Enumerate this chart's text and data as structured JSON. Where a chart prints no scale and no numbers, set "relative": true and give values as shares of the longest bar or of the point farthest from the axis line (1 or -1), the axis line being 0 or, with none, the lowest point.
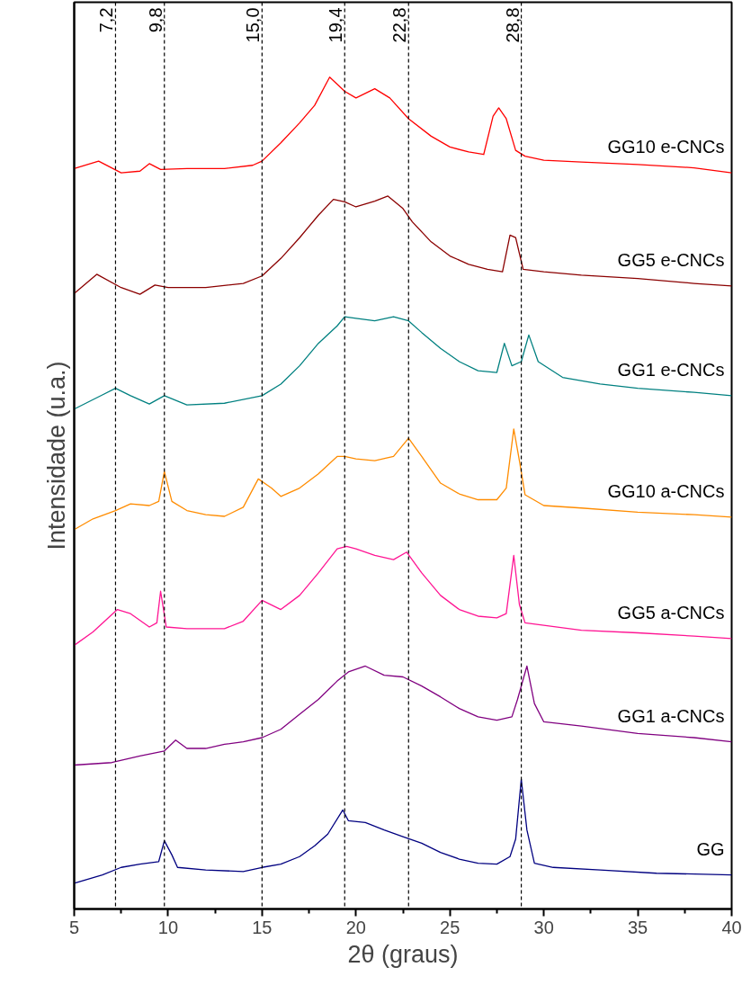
{
  "chart_data": {
    "type": "line",
    "relative": true,
    "xlabel": "2θ (graus)",
    "ylabel": "Intensidade (u.a.)",
    "xlim": [
      5,
      40
    ],
    "xticks": [
      5,
      10,
      15,
      20,
      25,
      30,
      35,
      40
    ],
    "grid": false,
    "line_style": "solid",
    "marker": "none",
    "ref_lines": [
      {
        "axis": "x",
        "value": 7.2,
        "label": "7,2",
        "color": "#000000",
        "line_style": "dashed"
      },
      {
        "axis": "x",
        "value": 9.8,
        "label": "9,8",
        "color": "#000000",
        "line_style": "dashed"
      },
      {
        "axis": "x",
        "value": 15.0,
        "label": "15,0",
        "color": "#000000",
        "line_style": "dashed"
      },
      {
        "axis": "x",
        "value": 19.4,
        "label": "19,4",
        "color": "#000000",
        "line_style": "dashed"
      },
      {
        "axis": "x",
        "value": 22.8,
        "label": "22,8",
        "color": "#000000",
        "line_style": "dashed"
      },
      {
        "axis": "x",
        "value": 28.8,
        "label": "28,8",
        "color": "#000000",
        "line_style": "dashed"
      }
    ],
    "series": [
      {
        "name": "GG10 e-CNCs",
        "color": "#ff0000",
        "x": [
          5,
          6.3,
          7.5,
          8.5,
          9,
          9.6,
          11,
          13,
          14.5,
          15,
          16,
          17,
          17.8,
          18.6,
          19.4,
          20,
          21,
          21.8,
          22.8,
          24,
          25,
          26,
          26.8,
          27.3,
          27.6,
          28,
          28.5,
          29,
          30,
          32,
          35,
          38,
          40
        ],
        "values": [
          0.89,
          0.899,
          0.885,
          0.887,
          0.896,
          0.889,
          0.89,
          0.89,
          0.894,
          0.899,
          0.921,
          0.945,
          0.966,
          1.0,
          0.983,
          0.975,
          0.986,
          0.975,
          0.95,
          0.929,
          0.916,
          0.91,
          0.907,
          0.953,
          0.963,
          0.95,
          0.912,
          0.905,
          0.9,
          0.898,
          0.895,
          0.891,
          0.885
        ]
      },
      {
        "name": "GG5 e-CNCs",
        "color": "#8b0000",
        "x": [
          5,
          6.2,
          7.5,
          8.5,
          9.3,
          10,
          12,
          14,
          15,
          16,
          17,
          18,
          18.8,
          19.4,
          20,
          21,
          21.7,
          22.5,
          23,
          24,
          25,
          26,
          27,
          27.8,
          28.2,
          28.5,
          28.9,
          30,
          32,
          35,
          38,
          40
        ],
        "values": [
          0.74,
          0.763,
          0.747,
          0.739,
          0.75,
          0.747,
          0.747,
          0.752,
          0.761,
          0.782,
          0.807,
          0.834,
          0.853,
          0.85,
          0.844,
          0.851,
          0.857,
          0.842,
          0.826,
          0.802,
          0.785,
          0.775,
          0.769,
          0.766,
          0.81,
          0.807,
          0.769,
          0.766,
          0.762,
          0.758,
          0.752,
          0.749
        ]
      },
      {
        "name": "GG1 e-CNCs",
        "color": "#008080",
        "x": [
          5,
          6.5,
          7.2,
          8,
          9,
          9.8,
          11,
          13,
          15,
          16,
          17,
          18,
          19,
          19.4,
          20,
          21,
          22,
          22.8,
          23.5,
          24.5,
          25.5,
          26.5,
          27.5,
          27.9,
          28.3,
          28.8,
          29.2,
          29.7,
          31,
          33,
          35,
          38,
          40
        ],
        "values": [
          0.601,
          0.618,
          0.626,
          0.617,
          0.607,
          0.617,
          0.606,
          0.608,
          0.617,
          0.631,
          0.653,
          0.68,
          0.701,
          0.712,
          0.71,
          0.707,
          0.712,
          0.707,
          0.693,
          0.674,
          0.658,
          0.647,
          0.645,
          0.68,
          0.653,
          0.658,
          0.69,
          0.658,
          0.639,
          0.631,
          0.626,
          0.621,
          0.617
        ]
      },
      {
        "name": "GG10 a-CNCs",
        "color": "#ff8c00",
        "x": [
          5,
          6,
          7.2,
          8,
          9,
          9.5,
          9.8,
          10.2,
          11,
          12,
          13,
          14,
          14.8,
          15.5,
          16,
          17,
          18,
          19,
          19.4,
          20,
          21,
          22,
          22.8,
          23.5,
          24.5,
          25.5,
          26.5,
          27.5,
          28,
          28.4,
          28.7,
          29,
          30,
          32,
          35,
          38,
          40
        ],
        "values": [
          0.456,
          0.469,
          0.479,
          0.487,
          0.485,
          0.49,
          0.526,
          0.49,
          0.479,
          0.474,
          0.472,
          0.483,
          0.517,
          0.506,
          0.496,
          0.506,
          0.523,
          0.544,
          0.544,
          0.541,
          0.539,
          0.544,
          0.566,
          0.544,
          0.512,
          0.499,
          0.492,
          0.492,
          0.506,
          0.577,
          0.539,
          0.498,
          0.485,
          0.482,
          0.477,
          0.474,
          0.471
        ]
      },
      {
        "name": "GG5 a-CNCs",
        "color": "#ff1493",
        "x": [
          5,
          6,
          7.3,
          8,
          9,
          9.4,
          9.6,
          9.9,
          11,
          13,
          14,
          15,
          16,
          17,
          18,
          19,
          19.5,
          20,
          21,
          22,
          22.7,
          23.5,
          24.5,
          25.5,
          26.5,
          27.5,
          28,
          28.4,
          28.7,
          29,
          30,
          32,
          35,
          38,
          40
        ],
        "values": [
          0.317,
          0.333,
          0.36,
          0.355,
          0.339,
          0.344,
          0.382,
          0.339,
          0.337,
          0.337,
          0.346,
          0.371,
          0.36,
          0.377,
          0.404,
          0.433,
          0.436,
          0.433,
          0.425,
          0.42,
          0.429,
          0.404,
          0.377,
          0.36,
          0.352,
          0.35,
          0.355,
          0.425,
          0.366,
          0.344,
          0.341,
          0.335,
          0.332,
          0.328,
          0.325
        ]
      },
      {
        "name": "GG1 a-CNCs",
        "color": "#800080",
        "x": [
          5,
          7,
          8.5,
          9.8,
          10.4,
          11,
          12,
          13,
          14,
          15,
          16,
          17,
          18,
          19,
          19.6,
          20.5,
          21.5,
          22.5,
          23.5,
          24.5,
          25.5,
          26.5,
          27.5,
          28.3,
          28.6,
          29.1,
          29.5,
          30,
          32,
          35,
          38,
          40
        ],
        "values": [
          0.173,
          0.176,
          0.184,
          0.19,
          0.203,
          0.193,
          0.193,
          0.198,
          0.201,
          0.206,
          0.216,
          0.234,
          0.252,
          0.274,
          0.285,
          0.292,
          0.281,
          0.279,
          0.268,
          0.255,
          0.241,
          0.231,
          0.227,
          0.231,
          0.252,
          0.292,
          0.247,
          0.225,
          0.22,
          0.211,
          0.206,
          0.201
        ]
      },
      {
        "name": "GG",
        "color": "#000080",
        "x": [
          5,
          6.5,
          7.5,
          8.5,
          9.5,
          9.8,
          10.2,
          10.5,
          12,
          14,
          15,
          16,
          17,
          17.8,
          18.5,
          19.3,
          19.6,
          20.5,
          21.5,
          22.5,
          23.5,
          24.5,
          25.5,
          26.5,
          27.5,
          28.2,
          28.5,
          28.8,
          29.1,
          29.5,
          30.5,
          33,
          36,
          40
        ],
        "values": [
          0.031,
          0.041,
          0.05,
          0.054,
          0.057,
          0.082,
          0.065,
          0.05,
          0.047,
          0.045,
          0.05,
          0.054,
          0.063,
          0.076,
          0.09,
          0.119,
          0.106,
          0.104,
          0.095,
          0.087,
          0.079,
          0.068,
          0.06,
          0.055,
          0.054,
          0.063,
          0.084,
          0.156,
          0.095,
          0.055,
          0.05,
          0.047,
          0.043,
          0.041
        ]
      }
    ]
  }
}
